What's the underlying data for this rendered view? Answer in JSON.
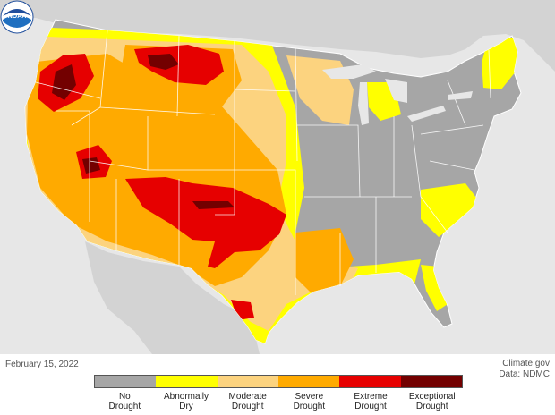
{
  "date": "February 15, 2022",
  "credit_source": "Climate.gov",
  "credit_data": "Data: NDMC",
  "logo_text": "NOAA",
  "legend": [
    {
      "line1": "No",
      "line2": "Drought",
      "color": "#a6a6a6"
    },
    {
      "line1": "Abnormally",
      "line2": "Dry",
      "color": "#ffff00"
    },
    {
      "line1": "Moderate",
      "line2": "Drought",
      "color": "#fcd37f"
    },
    {
      "line1": "Severe",
      "line2": "Drought",
      "color": "#ffaa00"
    },
    {
      "line1": "Extreme",
      "line2": "Drought",
      "color": "#e60000"
    },
    {
      "line1": "Exceptional",
      "line2": "Drought",
      "color": "#730000"
    }
  ],
  "colors": {
    "land_outside": "#d3d3d3",
    "water": "#e7e7e7",
    "border": "#ffffff"
  }
}
